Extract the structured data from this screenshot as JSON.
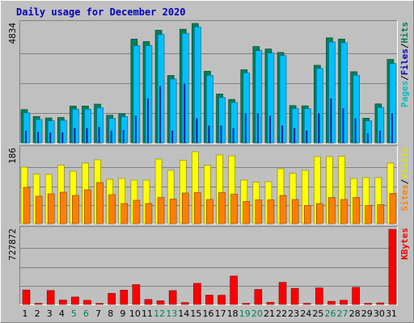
{
  "chart_data": {
    "type": "bar",
    "title": "Daily usage for December 2020",
    "days": [
      "1",
      "2",
      "3",
      "4",
      "5",
      "6",
      "7",
      "8",
      "9",
      "10",
      "11",
      "12",
      "13",
      "14",
      "15",
      "16",
      "17",
      "18",
      "19",
      "20",
      "21",
      "22",
      "23",
      "24",
      "25",
      "26",
      "27",
      "28",
      "29",
      "30",
      "31"
    ],
    "weekend_days": [
      "5",
      "6",
      "12",
      "13",
      "19",
      "20",
      "26",
      "27"
    ],
    "panels": [
      {
        "name": "hits-files-pages",
        "ymax": 4834,
        "ymax_label": "4834",
        "series_label": [
          "Pages",
          "Files",
          "Hits"
        ],
        "series": [
          {
            "name": "Hits",
            "values": [
              1350,
              1070,
              1010,
              1030,
              1490,
              1490,
              1570,
              1120,
              1180,
              4200,
              4100,
              4560,
              2730,
              4600,
              4840,
              2900,
              1980,
              1760,
              2960,
              3900,
              3800,
              3660,
              1510,
              1500,
              3140,
              4250,
              4200,
              2880,
              1000,
              1580,
              3380
            ]
          },
          {
            "name": "Files",
            "values": [
              1280,
              1010,
              960,
              980,
              1430,
              1430,
              1490,
              1060,
              1130,
              4000,
              4000,
              4450,
              2650,
              4500,
              4760,
              2800,
              1900,
              1700,
              2900,
              3800,
              3700,
              3600,
              1460,
              1450,
              3080,
              4150,
              4120,
              2800,
              960,
              1500,
              3280
            ]
          },
          {
            "name": "Pages",
            "values": [
              500,
              450,
              420,
              430,
              600,
              600,
              650,
              500,
              520,
              1100,
              1800,
              2300,
              500,
              2400,
              1000,
              700,
              700,
              600,
              1200,
              1200,
              1100,
              700,
              600,
              500,
              1200,
              1800,
              1400,
              1000,
              400,
              500,
              1200
            ]
          }
        ]
      },
      {
        "name": "visits-sites",
        "ymax": 186,
        "ymax_label": "186",
        "series_label": [
          "Sites",
          "Visits"
        ],
        "series": [
          {
            "name": "Visits",
            "values": [
              140,
              123,
              122,
              145,
              130,
              150,
              158,
              110,
              112,
              108,
              108,
              160,
              132,
              157,
              178,
              145,
              170,
              168,
              108,
              103,
              104,
              136,
              125,
              132,
              166,
              166,
              167,
              112,
              114,
              114,
              150
            ]
          },
          {
            "name": "Sites",
            "values": [
              90,
              68,
              74,
              78,
              70,
              84,
              102,
              72,
              50,
              58,
              50,
              65,
              61,
              76,
              77,
              60,
              77,
              73,
              55,
              59,
              59,
              70,
              60,
              45,
              50,
              65,
              60,
              65,
              45,
              47,
              75
            ]
          }
        ]
      },
      {
        "name": "kbytes",
        "ymax": 727872,
        "ymax_label": "727872",
        "series_label": [
          "KBytes"
        ],
        "series": [
          {
            "name": "KBytes",
            "values": [
              140000,
              10000,
              135000,
              42000,
              72000,
              40000,
              10000,
              108000,
              138000,
              192000,
              48000,
              35000,
              134000,
              18000,
              204000,
              90000,
              89000,
              275000,
              10000,
              145000,
              20000,
              214000,
              155000,
              10000,
              160000,
              30000,
              40000,
              165000,
              10000,
              15000,
              727872
            ]
          }
        ]
      }
    ]
  },
  "colors": {
    "background": "#c0c0c0",
    "frame": "#ffffff",
    "title": "#0000c0",
    "hits": "#00805a",
    "files": "#00c0ff",
    "pages": "#0020a0",
    "visits": "#ffff00",
    "sites": "#ff8000",
    "kbytes": "#ff0000",
    "gridline": "#808080",
    "day_weekday": "#000000",
    "day_weekend": "#00805a",
    "label_pages": "#00c0c0",
    "label_files": "#0000c0",
    "label_hits": "#00805a",
    "label_sites": "#ff8000",
    "label_visits": "#e0e000",
    "label_kbytes": "#ff0000",
    "label_slash": "#000000"
  }
}
